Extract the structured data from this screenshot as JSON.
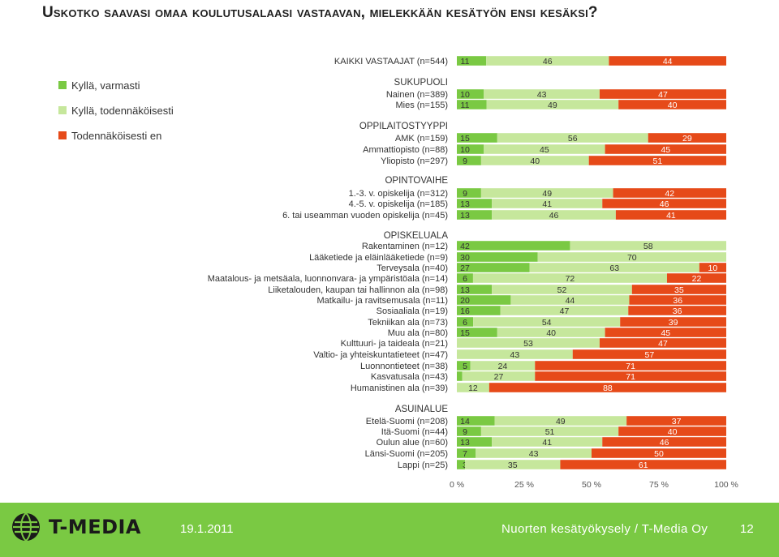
{
  "title": "Uskotko saavasi omaa koulutusalaasi vastaavan, mielekkään kesätyön ensi kesäksi?",
  "colors": {
    "yes_certainly": "#7ac943",
    "yes_probably": "#c6e79c",
    "probably_not": "#e64a19"
  },
  "footer": {
    "logo_text": "T-MEDIA",
    "date": "19.1.2011",
    "source": "Nuorten kesätyökysely / T-Media Oy",
    "page": "12"
  },
  "chart_data": {
    "type": "bar",
    "stacked": true,
    "orientation": "horizontal",
    "xlim": [
      0,
      100
    ],
    "x_ticks": [
      "0 %",
      "25 %",
      "50 %",
      "75 %",
      "100 %"
    ],
    "legend": [
      "Kyllä, varmasti",
      "Kyllä, todennäköisesti",
      "Todennäköisesti en"
    ],
    "legend_position": "left",
    "rows": [
      {
        "label": "KAIKKI VASTAAJAT (n=544)",
        "header": true,
        "values": [
          11,
          46,
          44
        ]
      },
      {
        "label": "SUKUPUOLI",
        "group": true
      },
      {
        "label": "Nainen (n=389)",
        "values": [
          10,
          43,
          47
        ]
      },
      {
        "label": "Mies (n=155)",
        "values": [
          11,
          49,
          40
        ]
      },
      {
        "label": "OPPILAITOSTYYPPI",
        "group": true
      },
      {
        "label": "AMK (n=159)",
        "values": [
          15,
          56,
          29
        ]
      },
      {
        "label": "Ammattiopisto (n=88)",
        "values": [
          10,
          45,
          45
        ]
      },
      {
        "label": "Yliopisto (n=297)",
        "values": [
          9,
          40,
          51
        ]
      },
      {
        "label": "OPINTOVAIHE",
        "group": true
      },
      {
        "label": "1.-3. v. opiskelija (n=312)",
        "values": [
          9,
          49,
          42
        ]
      },
      {
        "label": "4.-5. v. opiskelija (n=185)",
        "values": [
          13,
          41,
          46
        ]
      },
      {
        "label": "6. tai useamman vuoden opiskelija (n=45)",
        "values": [
          13,
          46,
          41
        ]
      },
      {
        "label": "OPISKELUALA",
        "group": true
      },
      {
        "label": "Rakentaminen (n=12)",
        "values": [
          42,
          58,
          0
        ]
      },
      {
        "label": "Lääketiede ja eläinlääketiede (n=9)",
        "values": [
          30,
          70,
          0
        ]
      },
      {
        "label": "Terveysala (n=40)",
        "values": [
          27,
          63,
          10
        ]
      },
      {
        "label": "Maatalous- ja metsäala, luonnonvara- ja ympäristöala (n=14)",
        "values": [
          6,
          72,
          22
        ]
      },
      {
        "label": "Liiketalouden, kaupan tai hallinnon ala (n=98)",
        "values": [
          13,
          52,
          35
        ]
      },
      {
        "label": "Matkailu- ja ravitsemusala (n=11)",
        "values": [
          20,
          44,
          36
        ]
      },
      {
        "label": "Sosiaaliala (n=19)",
        "values": [
          16,
          47,
          36
        ]
      },
      {
        "label": "Tekniikan ala (n=73)",
        "values": [
          6,
          54,
          39
        ]
      },
      {
        "label": "Muu ala (n=80)",
        "values": [
          15,
          40,
          45
        ]
      },
      {
        "label": "Kulttuuri- ja taideala (n=21)",
        "values": [
          0,
          53,
          47
        ]
      },
      {
        "label": "Valtio- ja yhteiskuntatieteet (n=47)",
        "values": [
          0,
          43,
          57
        ]
      },
      {
        "label": "Luonnontieteet (n=38)",
        "values": [
          5,
          24,
          71
        ]
      },
      {
        "label": "Kasvatusala (n=43)",
        "values": [
          2,
          27,
          71
        ]
      },
      {
        "label": "Humanistinen ala (n=39)",
        "values": [
          0,
          12,
          88
        ]
      },
      {
        "label": "ASUINALUE",
        "group": true
      },
      {
        "label": "Etelä-Suomi (n=208)",
        "values": [
          14,
          49,
          37
        ]
      },
      {
        "label": "Itä-Suomi (n=44)",
        "values": [
          9,
          51,
          40
        ]
      },
      {
        "label": "Oulun alue (n=60)",
        "values": [
          13,
          41,
          46
        ]
      },
      {
        "label": "Länsi-Suomi (n=205)",
        "values": [
          7,
          43,
          50
        ]
      },
      {
        "label": "Lappi (n=25)",
        "values": [
          3,
          35,
          61
        ]
      }
    ]
  }
}
